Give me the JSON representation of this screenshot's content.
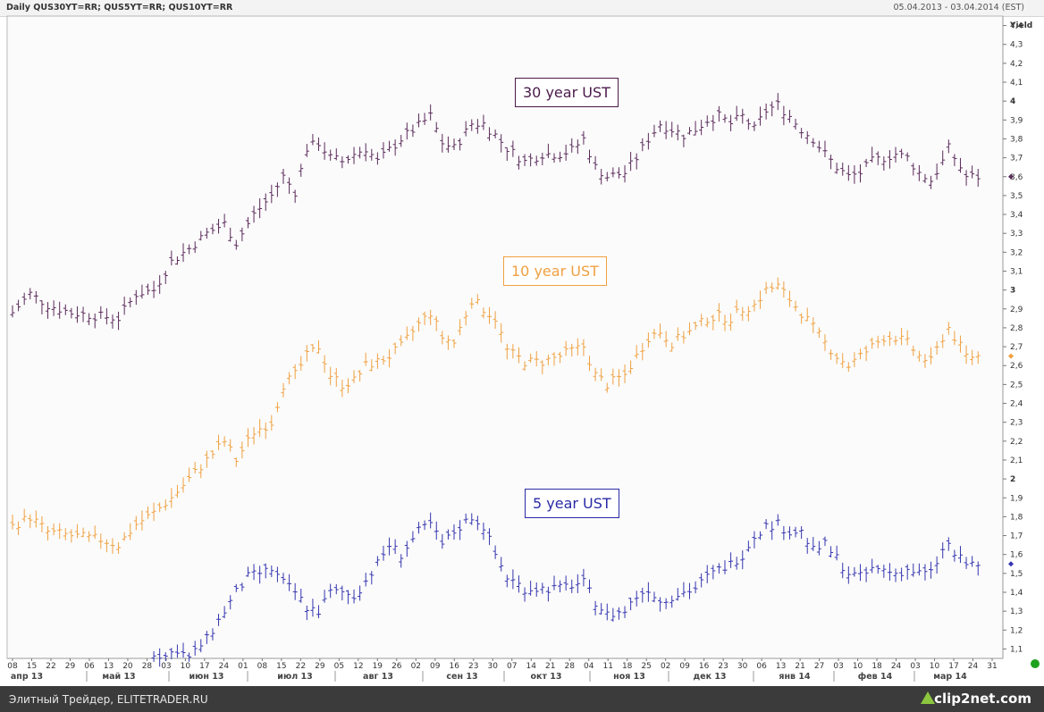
{
  "header": {
    "title": "Daily QUS30YT=RR; QUS5YT=RR; QUS10YT=RR",
    "date_range": "05.04.2013 - 03.04.2014 (EST)"
  },
  "status_bar": {
    "text": "Элитный Трейдер, ELITETRADER.RU",
    "brand": "clip2net.com"
  },
  "chart_data": {
    "type": "line",
    "title": "",
    "ylabel": "Yield",
    "ylim": [
      1.05,
      4.45
    ],
    "y_ticks": [
      "1,1",
      "1,2",
      "1,3",
      "1,4",
      "1,5",
      "1,6",
      "1,7",
      "1,8",
      "1,9",
      "2",
      "2,1",
      "2,2",
      "2,3",
      "2,4",
      "2,5",
      "2,6",
      "2,7",
      "2,8",
      "2,9",
      "3",
      "3,1",
      "3,2",
      "3,3",
      "3,4",
      "3,5",
      "3,6",
      "3,7",
      "3,8",
      "3,9",
      "4",
      "4,1",
      "4,2",
      "4,3",
      "4,4"
    ],
    "x_day_ticks": [
      "08",
      "15",
      "22",
      "29",
      "06",
      "13",
      "20",
      "28",
      "03",
      "10",
      "17",
      "24",
      "01",
      "08",
      "15",
      "22",
      "29",
      "05",
      "12",
      "19",
      "26",
      "02",
      "09",
      "16",
      "23",
      "30",
      "07",
      "14",
      "21",
      "28",
      "04",
      "11",
      "18",
      "25",
      "02",
      "09",
      "16",
      "23",
      "30",
      "06",
      "13",
      "21",
      "27",
      "03",
      "10",
      "18",
      "24",
      "03",
      "10",
      "17",
      "24",
      "31"
    ],
    "x_month_ticks": [
      "апр 13",
      "май 13",
      "июн 13",
      "июл 13",
      "авг 13",
      "сен 13",
      "окт 13",
      "ноя 13",
      "дек 13",
      "янв 14",
      "фев 14",
      "мар 14"
    ],
    "annotations": [
      {
        "text": "30 year UST",
        "color": "#4a1a4a"
      },
      {
        "text": "10 year UST",
        "color": "#f0a040"
      },
      {
        "text": "5 year UST",
        "color": "#2a2aa8"
      }
    ],
    "series": [
      {
        "key": "30y",
        "color": "#5a2a5a",
        "anchors": [
          [
            0,
            2.88
          ],
          [
            3,
            2.98
          ],
          [
            6,
            2.92
          ],
          [
            10,
            2.88
          ],
          [
            15,
            2.86
          ],
          [
            18,
            2.85
          ],
          [
            21,
            2.98
          ],
          [
            24,
            3.0
          ],
          [
            27,
            3.15
          ],
          [
            30,
            3.22
          ],
          [
            33,
            3.3
          ],
          [
            36,
            3.35
          ],
          [
            38,
            3.25
          ],
          [
            41,
            3.4
          ],
          [
            44,
            3.5
          ],
          [
            46,
            3.6
          ],
          [
            48,
            3.52
          ],
          [
            50,
            3.75
          ],
          [
            52,
            3.78
          ],
          [
            54,
            3.7
          ],
          [
            56,
            3.68
          ],
          [
            58,
            3.72
          ],
          [
            60,
            3.75
          ],
          [
            62,
            3.68
          ],
          [
            64,
            3.74
          ],
          [
            66,
            3.8
          ],
          [
            69,
            3.87
          ],
          [
            71,
            3.92
          ],
          [
            73,
            3.78
          ],
          [
            75,
            3.75
          ],
          [
            78,
            3.88
          ],
          [
            80,
            3.88
          ],
          [
            82,
            3.82
          ],
          [
            84,
            3.75
          ],
          [
            87,
            3.68
          ],
          [
            90,
            3.72
          ],
          [
            93,
            3.72
          ],
          [
            95,
            3.74
          ],
          [
            97,
            3.8
          ],
          [
            99,
            3.65
          ],
          [
            101,
            3.6
          ],
          [
            104,
            3.62
          ],
          [
            106,
            3.7
          ],
          [
            108,
            3.8
          ],
          [
            110,
            3.88
          ],
          [
            112,
            3.85
          ],
          [
            114,
            3.82
          ],
          [
            116,
            3.85
          ],
          [
            118,
            3.9
          ],
          [
            120,
            3.92
          ],
          [
            122,
            3.88
          ],
          [
            124,
            3.92
          ],
          [
            126,
            3.85
          ],
          [
            128,
            3.95
          ],
          [
            130,
            3.98
          ],
          [
            132,
            3.92
          ],
          [
            134,
            3.85
          ],
          [
            136,
            3.8
          ],
          [
            138,
            3.72
          ],
          [
            140,
            3.65
          ],
          [
            142,
            3.6
          ],
          [
            144,
            3.62
          ],
          [
            146,
            3.68
          ],
          [
            148,
            3.7
          ],
          [
            150,
            3.72
          ],
          [
            152,
            3.7
          ],
          [
            154,
            3.62
          ],
          [
            156,
            3.58
          ],
          [
            158,
            3.68
          ],
          [
            159,
            3.75
          ],
          [
            160,
            3.7
          ],
          [
            162,
            3.6
          ],
          [
            164,
            3.6
          ]
        ]
      },
      {
        "key": "10y",
        "color": "#f0a040",
        "anchors": [
          [
            0,
            1.75
          ],
          [
            3,
            1.8
          ],
          [
            6,
            1.72
          ],
          [
            10,
            1.7
          ],
          [
            15,
            1.68
          ],
          [
            18,
            1.65
          ],
          [
            21,
            1.76
          ],
          [
            24,
            1.82
          ],
          [
            27,
            1.9
          ],
          [
            30,
            2.0
          ],
          [
            33,
            2.1
          ],
          [
            36,
            2.2
          ],
          [
            38,
            2.1
          ],
          [
            41,
            2.25
          ],
          [
            44,
            2.3
          ],
          [
            46,
            2.5
          ],
          [
            48,
            2.55
          ],
          [
            50,
            2.65
          ],
          [
            52,
            2.7
          ],
          [
            54,
            2.55
          ],
          [
            56,
            2.5
          ],
          [
            58,
            2.52
          ],
          [
            60,
            2.6
          ],
          [
            62,
            2.62
          ],
          [
            64,
            2.65
          ],
          [
            66,
            2.7
          ],
          [
            69,
            2.82
          ],
          [
            71,
            2.88
          ],
          [
            73,
            2.75
          ],
          [
            75,
            2.72
          ],
          [
            78,
            2.95
          ],
          [
            80,
            2.9
          ],
          [
            82,
            2.85
          ],
          [
            84,
            2.68
          ],
          [
            87,
            2.62
          ],
          [
            90,
            2.62
          ],
          [
            93,
            2.65
          ],
          [
            95,
            2.68
          ],
          [
            97,
            2.7
          ],
          [
            99,
            2.55
          ],
          [
            101,
            2.5
          ],
          [
            104,
            2.55
          ],
          [
            106,
            2.65
          ],
          [
            108,
            2.75
          ],
          [
            110,
            2.78
          ],
          [
            112,
            2.72
          ],
          [
            114,
            2.76
          ],
          [
            116,
            2.8
          ],
          [
            118,
            2.85
          ],
          [
            120,
            2.86
          ],
          [
            122,
            2.85
          ],
          [
            124,
            2.9
          ],
          [
            126,
            2.92
          ],
          [
            128,
            3.0
          ],
          [
            130,
            3.02
          ],
          [
            132,
            2.95
          ],
          [
            134,
            2.88
          ],
          [
            136,
            2.8
          ],
          [
            138,
            2.72
          ],
          [
            140,
            2.65
          ],
          [
            142,
            2.6
          ],
          [
            144,
            2.65
          ],
          [
            146,
            2.7
          ],
          [
            148,
            2.75
          ],
          [
            150,
            2.75
          ],
          [
            152,
            2.72
          ],
          [
            154,
            2.65
          ],
          [
            156,
            2.62
          ],
          [
            158,
            2.75
          ],
          [
            159,
            2.8
          ],
          [
            160,
            2.75
          ],
          [
            162,
            2.65
          ],
          [
            164,
            2.65
          ]
        ]
      },
      {
        "key": "5y",
        "color": "#3535b0",
        "anchors": [
          [
            24,
            1.08
          ],
          [
            26,
            1.06
          ],
          [
            28,
            1.1
          ],
          [
            30,
            1.05
          ],
          [
            32,
            1.12
          ],
          [
            33,
            1.15
          ],
          [
            34,
            1.2
          ],
          [
            35,
            1.25
          ],
          [
            36,
            1.3
          ],
          [
            38,
            1.4
          ],
          [
            40,
            1.48
          ],
          [
            42,
            1.5
          ],
          [
            44,
            1.52
          ],
          [
            46,
            1.45
          ],
          [
            48,
            1.4
          ],
          [
            50,
            1.32
          ],
          [
            52,
            1.3
          ],
          [
            54,
            1.4
          ],
          [
            56,
            1.4
          ],
          [
            58,
            1.38
          ],
          [
            60,
            1.46
          ],
          [
            62,
            1.55
          ],
          [
            64,
            1.65
          ],
          [
            66,
            1.6
          ],
          [
            69,
            1.72
          ],
          [
            71,
            1.76
          ],
          [
            73,
            1.65
          ],
          [
            75,
            1.72
          ],
          [
            78,
            1.8
          ],
          [
            80,
            1.75
          ],
          [
            82,
            1.6
          ],
          [
            84,
            1.48
          ],
          [
            87,
            1.42
          ],
          [
            90,
            1.42
          ],
          [
            93,
            1.42
          ],
          [
            95,
            1.44
          ],
          [
            97,
            1.45
          ],
          [
            99,
            1.35
          ],
          [
            101,
            1.28
          ],
          [
            104,
            1.3
          ],
          [
            106,
            1.38
          ],
          [
            108,
            1.42
          ],
          [
            110,
            1.35
          ],
          [
            112,
            1.38
          ],
          [
            114,
            1.4
          ],
          [
            116,
            1.42
          ],
          [
            118,
            1.48
          ],
          [
            120,
            1.52
          ],
          [
            122,
            1.55
          ],
          [
            124,
            1.6
          ],
          [
            126,
            1.7
          ],
          [
            128,
            1.75
          ],
          [
            130,
            1.76
          ],
          [
            132,
            1.72
          ],
          [
            134,
            1.72
          ],
          [
            136,
            1.62
          ],
          [
            138,
            1.65
          ],
          [
            140,
            1.58
          ],
          [
            142,
            1.5
          ],
          [
            144,
            1.48
          ],
          [
            146,
            1.52
          ],
          [
            148,
            1.52
          ],
          [
            150,
            1.5
          ],
          [
            152,
            1.52
          ],
          [
            154,
            1.5
          ],
          [
            156,
            1.5
          ],
          [
            158,
            1.62
          ],
          [
            159,
            1.65
          ],
          [
            160,
            1.6
          ],
          [
            162,
            1.55
          ],
          [
            164,
            1.55
          ]
        ]
      }
    ]
  }
}
